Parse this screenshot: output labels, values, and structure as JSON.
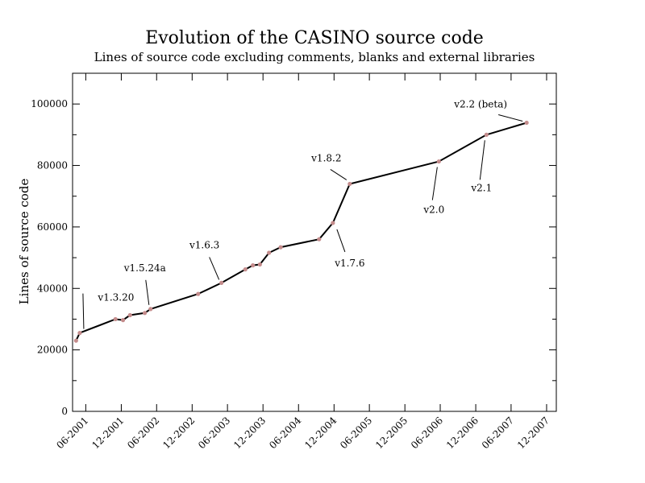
{
  "chart_data": {
    "type": "line",
    "title": "Evolution of the CASINO source code",
    "subtitle": "Lines of source code excluding comments, blanks and external libraries",
    "xlabel": "",
    "ylabel": "Lines of source code",
    "x_range": [
      "2001-03-25",
      "2008-01-20"
    ],
    "ylim": [
      0,
      110000
    ],
    "y_ticks": [
      0,
      20000,
      40000,
      60000,
      80000,
      100000
    ],
    "y_tick_labels": [
      "0",
      "20000",
      "40000",
      "60000",
      "80000",
      "100000"
    ],
    "x_ticks": [
      "2001-06-01",
      "2001-12-01",
      "2002-06-01",
      "2002-12-01",
      "2003-06-01",
      "2003-12-01",
      "2004-06-01",
      "2004-12-01",
      "2005-06-01",
      "2005-12-01",
      "2006-06-01",
      "2006-12-01",
      "2007-06-01",
      "2007-12-01"
    ],
    "x_tick_labels": [
      "06-2001",
      "12-2001",
      "06-2002",
      "12-2002",
      "06-2003",
      "12-2003",
      "06-2004",
      "12-2004",
      "06-2005",
      "12-2005",
      "06-2006",
      "12-2006",
      "06-2007",
      "12-2007"
    ],
    "grid": false,
    "series": [
      {
        "color": "#000000",
        "marker_color": "#c48c8c",
        "points": [
          {
            "x": "2001-04-12",
            "y": 23000
          },
          {
            "x": "2001-05-01",
            "y": 25500
          },
          {
            "x": "2001-11-01",
            "y": 30000
          },
          {
            "x": "2001-12-10",
            "y": 29700
          },
          {
            "x": "2002-01-15",
            "y": 31300
          },
          {
            "x": "2002-04-01",
            "y": 32000
          },
          {
            "x": "2002-05-01",
            "y": 33300
          },
          {
            "x": "2003-01-01",
            "y": 38200
          },
          {
            "x": "2003-05-01",
            "y": 41800
          },
          {
            "x": "2003-09-01",
            "y": 46200
          },
          {
            "x": "2003-10-10",
            "y": 47500
          },
          {
            "x": "2003-11-15",
            "y": 47800
          },
          {
            "x": "2004-01-01",
            "y": 51600
          },
          {
            "x": "2004-03-01",
            "y": 53400
          },
          {
            "x": "2004-09-15",
            "y": 56000
          },
          {
            "x": "2004-11-25",
            "y": 61300
          },
          {
            "x": "2005-02-20",
            "y": 74000
          },
          {
            "x": "2006-05-25",
            "y": 81300
          },
          {
            "x": "2007-01-25",
            "y": 90000
          },
          {
            "x": "2007-08-20",
            "y": 93900
          }
        ]
      }
    ],
    "annotations": [
      {
        "text": "v1.3.20",
        "x": "2001-05-01",
        "y": 25500
      },
      {
        "text": "v1.5.24a",
        "x": "2002-05-01",
        "y": 33300
      },
      {
        "text": "v1.6.3",
        "x": "2003-05-01",
        "y": 41800
      },
      {
        "text": "v1.8.2",
        "x": "2005-02-20",
        "y": 74000
      },
      {
        "text": "v1.7.6",
        "x": "2004-11-25",
        "y": 61300
      },
      {
        "text": "v2.0",
        "x": "2006-05-25",
        "y": 81300
      },
      {
        "text": "v2.1",
        "x": "2007-01-25",
        "y": 90000
      },
      {
        "text": "v2.2 (beta)",
        "x": "2007-08-20",
        "y": 93900
      }
    ]
  }
}
